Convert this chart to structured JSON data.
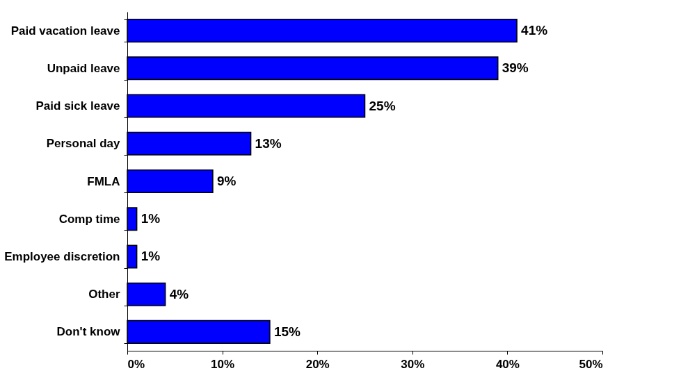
{
  "chart_data": {
    "type": "bar",
    "orientation": "horizontal",
    "categories": [
      "Paid vacation leave",
      "Unpaid leave",
      "Paid sick leave",
      "Personal day",
      "FMLA",
      "Comp time",
      "Employee discretion",
      "Other",
      "Don't know"
    ],
    "values": [
      41,
      39,
      25,
      13,
      9,
      1,
      1,
      4,
      15
    ],
    "value_labels": [
      "41%",
      "39%",
      "25%",
      "13%",
      "9%",
      "1%",
      "1%",
      "4%",
      "15%"
    ],
    "color": "#0000ff",
    "xlim": [
      0,
      50
    ],
    "xticks": [
      {
        "value": 0,
        "label": "0%"
      },
      {
        "value": 10,
        "label": "10%"
      },
      {
        "value": 20,
        "label": "20%"
      },
      {
        "value": 30,
        "label": "30%"
      },
      {
        "value": 40,
        "label": "40%"
      },
      {
        "value": 50,
        "label": "50%"
      }
    ],
    "grid": false
  }
}
